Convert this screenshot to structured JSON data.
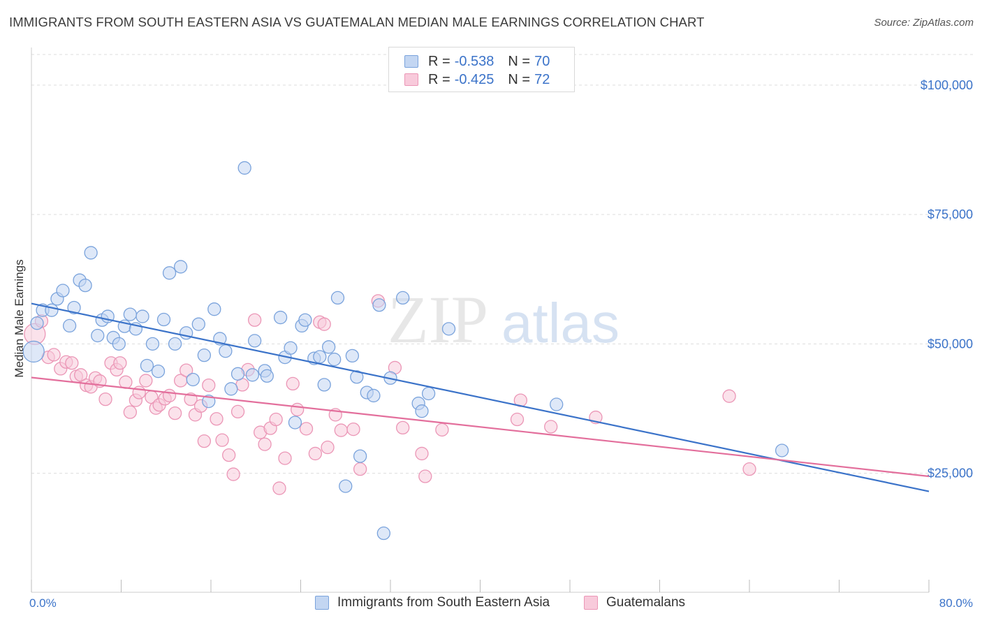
{
  "title": "IMMIGRANTS FROM SOUTH EASTERN ASIA VS GUATEMALAN MEDIAN MALE EARNINGS CORRELATION CHART",
  "source": "Source: ZipAtlas.com",
  "watermark": {
    "zip": "ZIP",
    "atlas": "atlas"
  },
  "legend": {
    "r_label": "R =",
    "n_label": "N =",
    "rows": [
      {
        "r": "-0.538",
        "n": "70"
      },
      {
        "r": "-0.425",
        "n": "72"
      }
    ]
  },
  "colors": {
    "blue": "#3b73c9",
    "blue_fill": "#c3d6f2",
    "blue_stroke": "#7aa3dc",
    "pink": "#e36f9c",
    "pink_fill": "#f8cadb",
    "pink_stroke": "#eb96b6",
    "grid": "#dddddd",
    "axis_label": "#3b73c9"
  },
  "chart_data": {
    "type": "scatter",
    "title": "IMMIGRANTS FROM SOUTH EASTERN ASIA VS GUATEMALAN MEDIAN MALE EARNINGS CORRELATION CHART",
    "xlabel": "",
    "ylabel": "Median Male Earnings",
    "xlim": [
      0,
      80
    ],
    "ylim": [
      2000,
      107000
    ],
    "x_tick_labels": [
      "0.0%",
      "80.0%"
    ],
    "y_ticks": [
      25000,
      50000,
      75000,
      100000
    ],
    "y_tick_labels": [
      "$25,000",
      "$50,000",
      "$75,000",
      "$100,000"
    ],
    "grid": "horizontal dashed",
    "legend_position": "top-center",
    "series": [
      {
        "name": "Immigrants from South Eastern Asia",
        "color": "#3b73c9",
        "trend": {
          "x": [
            0,
            80
          ],
          "y": [
            57800,
            21500
          ]
        },
        "points": [
          [
            0.2,
            48500
          ],
          [
            0.5,
            54000
          ],
          [
            1.0,
            56500
          ],
          [
            1.8,
            56500
          ],
          [
            2.3,
            58700
          ],
          [
            2.8,
            60300
          ],
          [
            3.4,
            53500
          ],
          [
            3.8,
            57000
          ],
          [
            4.3,
            62300
          ],
          [
            4.8,
            61300
          ],
          [
            5.3,
            67600
          ],
          [
            5.9,
            51600
          ],
          [
            6.3,
            54600
          ],
          [
            6.8,
            55300
          ],
          [
            7.3,
            51200
          ],
          [
            7.8,
            50000
          ],
          [
            8.3,
            53400
          ],
          [
            8.8,
            55700
          ],
          [
            9.3,
            52900
          ],
          [
            9.9,
            55300
          ],
          [
            10.3,
            45800
          ],
          [
            10.8,
            50000
          ],
          [
            11.3,
            44700
          ],
          [
            11.8,
            54700
          ],
          [
            12.3,
            63700
          ],
          [
            12.8,
            50000
          ],
          [
            13.3,
            64900
          ],
          [
            13.8,
            52100
          ],
          [
            14.4,
            43100
          ],
          [
            14.9,
            53800
          ],
          [
            15.4,
            47800
          ],
          [
            15.8,
            38900
          ],
          [
            16.3,
            56700
          ],
          [
            16.8,
            51000
          ],
          [
            17.3,
            48600
          ],
          [
            17.8,
            41300
          ],
          [
            18.4,
            44200
          ],
          [
            19.0,
            84000
          ],
          [
            19.9,
            50600
          ],
          [
            19.7,
            44000
          ],
          [
            20.8,
            44800
          ],
          [
            21.0,
            43800
          ],
          [
            22.2,
            55100
          ],
          [
            22.6,
            47400
          ],
          [
            23.1,
            49200
          ],
          [
            23.5,
            34800
          ],
          [
            24.1,
            53500
          ],
          [
            24.4,
            54600
          ],
          [
            25.2,
            47200
          ],
          [
            25.7,
            47500
          ],
          [
            26.1,
            42100
          ],
          [
            26.5,
            49400
          ],
          [
            27.0,
            47000
          ],
          [
            27.3,
            58900
          ],
          [
            28.6,
            47700
          ],
          [
            29.0,
            43600
          ],
          [
            29.3,
            28300
          ],
          [
            29.9,
            40600
          ],
          [
            30.5,
            40000
          ],
          [
            31.0,
            57500
          ],
          [
            32.0,
            43400
          ],
          [
            33.1,
            58900
          ],
          [
            34.5,
            38500
          ],
          [
            34.8,
            37000
          ],
          [
            35.4,
            40400
          ],
          [
            37.2,
            52900
          ],
          [
            46.8,
            38300
          ],
          [
            66.9,
            29400
          ],
          [
            28.0,
            22500
          ],
          [
            31.4,
            13400
          ]
        ]
      },
      {
        "name": "Guatemalans",
        "color": "#e36f9c",
        "trend": {
          "x": [
            0,
            80
          ],
          "y": [
            43500,
            24400
          ]
        },
        "points": [
          [
            0.3,
            51900
          ],
          [
            0.9,
            54400
          ],
          [
            1.5,
            47400
          ],
          [
            2.0,
            47900
          ],
          [
            2.6,
            45200
          ],
          [
            3.1,
            46500
          ],
          [
            3.6,
            46300
          ],
          [
            4.0,
            43700
          ],
          [
            4.4,
            44000
          ],
          [
            4.9,
            42000
          ],
          [
            5.3,
            41700
          ],
          [
            5.7,
            43400
          ],
          [
            6.1,
            42800
          ],
          [
            6.6,
            39300
          ],
          [
            7.1,
            46300
          ],
          [
            7.6,
            45000
          ],
          [
            7.9,
            46300
          ],
          [
            8.4,
            42600
          ],
          [
            8.8,
            36800
          ],
          [
            9.3,
            39100
          ],
          [
            9.6,
            40600
          ],
          [
            10.2,
            42900
          ],
          [
            10.7,
            39700
          ],
          [
            11.1,
            37600
          ],
          [
            11.4,
            38200
          ],
          [
            11.9,
            39400
          ],
          [
            12.3,
            40000
          ],
          [
            12.8,
            36600
          ],
          [
            13.3,
            42900
          ],
          [
            13.8,
            44900
          ],
          [
            14.2,
            39300
          ],
          [
            14.6,
            36300
          ],
          [
            15.1,
            38000
          ],
          [
            15.4,
            31200
          ],
          [
            15.8,
            42000
          ],
          [
            16.5,
            35500
          ],
          [
            17.0,
            31400
          ],
          [
            17.6,
            28500
          ],
          [
            18.0,
            24800
          ],
          [
            18.4,
            36900
          ],
          [
            18.8,
            42100
          ],
          [
            19.3,
            45000
          ],
          [
            19.9,
            54600
          ],
          [
            20.4,
            32900
          ],
          [
            20.8,
            30600
          ],
          [
            21.3,
            33700
          ],
          [
            21.8,
            35400
          ],
          [
            22.1,
            22100
          ],
          [
            22.6,
            27900
          ],
          [
            23.3,
            42300
          ],
          [
            23.7,
            37300
          ],
          [
            24.5,
            33600
          ],
          [
            25.3,
            28800
          ],
          [
            25.7,
            54200
          ],
          [
            26.1,
            53800
          ],
          [
            26.4,
            30000
          ],
          [
            27.1,
            36300
          ],
          [
            27.6,
            33300
          ],
          [
            28.7,
            33500
          ],
          [
            29.3,
            25800
          ],
          [
            30.9,
            58300
          ],
          [
            32.4,
            45400
          ],
          [
            33.1,
            33800
          ],
          [
            34.8,
            28800
          ],
          [
            35.1,
            24400
          ],
          [
            36.6,
            33400
          ],
          [
            43.3,
            35400
          ],
          [
            43.6,
            39100
          ],
          [
            46.3,
            34000
          ],
          [
            50.3,
            35800
          ],
          [
            62.2,
            39900
          ],
          [
            64.0,
            25800
          ]
        ]
      }
    ]
  },
  "bottom_legend": [
    "Immigrants from South Eastern Asia",
    "Guatemalans"
  ]
}
